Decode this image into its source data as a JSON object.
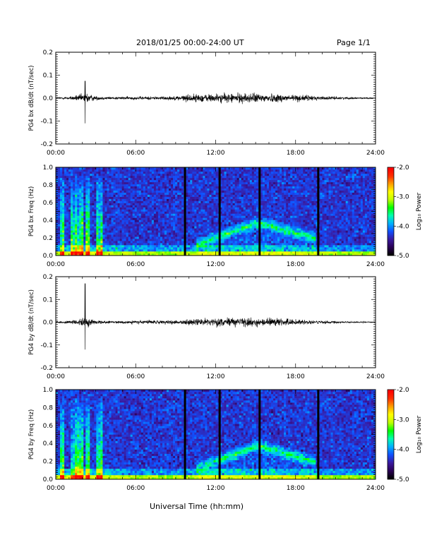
{
  "header": {
    "title": "2018/01/25  00:00-24:00 UT",
    "page": "Page 1/1"
  },
  "x_axis_title": "Universal Time (hh:mm)",
  "colorbar": {
    "label": "Log₁₀ Power",
    "ticks": [
      "-2.0",
      "-3.0",
      "-4.0",
      "-5.0"
    ],
    "range": [
      -5.0,
      -2.0
    ],
    "colors": [
      "#000000",
      "#2a0055",
      "#3a1aa0",
      "#1050ff",
      "#00b0ff",
      "#00ffb0",
      "#00ff00",
      "#c0ff00",
      "#ffff00",
      "#ffa000",
      "#ff3000",
      "#ff0000"
    ]
  },
  "chart_data": [
    {
      "type": "line",
      "ylabel": "PG4 bx dB/dt (nT/sec)",
      "xlim": [
        0,
        24
      ],
      "ylim": [
        -0.2,
        0.2
      ],
      "x_ticks": [
        "00:00",
        "06:00",
        "12:00",
        "18:00",
        "24:00"
      ],
      "y_ticks": [
        "0.2",
        "0.1",
        "0.0",
        "-0.1",
        "-0.2"
      ],
      "envelope": {
        "hours": [
          0,
          1,
          1.5,
          2,
          2.3,
          2.5,
          3,
          4,
          5,
          6,
          7,
          8,
          9,
          10,
          11,
          12,
          13,
          14,
          15,
          16,
          17,
          18,
          19,
          20,
          21,
          22,
          23,
          24
        ],
        "amplitude": [
          0.008,
          0.01,
          0.02,
          0.03,
          0.045,
          0.03,
          0.015,
          0.01,
          0.01,
          0.012,
          0.012,
          0.013,
          0.015,
          0.028,
          0.03,
          0.032,
          0.034,
          0.036,
          0.035,
          0.032,
          0.03,
          0.026,
          0.02,
          0.014,
          0.01,
          0.008,
          0.005,
          0.004
        ]
      },
      "spikes": [
        {
          "hour": 2.2,
          "max": 0.075,
          "min": -0.11
        }
      ]
    },
    {
      "type": "heatmap",
      "ylabel": "PG4 bx Freq (Hz)",
      "xlim": [
        0,
        24
      ],
      "ylim": [
        0.0,
        1.0
      ],
      "x_ticks": [
        "00:00",
        "06:00",
        "12:00",
        "18:00",
        "24:00"
      ],
      "y_ticks": [
        "1.0",
        "0.8",
        "0.6",
        "0.4",
        "0.2",
        "0.0"
      ],
      "data_gaps_hours": [
        9.7,
        12.3,
        15.3,
        19.7
      ],
      "features": {
        "low_freq_band_hz": 0.05,
        "broadband_bursts": [
          [
            0.3,
            0.6
          ],
          [
            1.2,
            2.0
          ],
          [
            2.2,
            2.6
          ],
          [
            3.0,
            3.5
          ]
        ],
        "rising_tone": {
          "start_hour": 10.5,
          "end_hour": 19.5,
          "peak_hour": 15.2,
          "peak_freq_hz": 0.38,
          "end_freq_hz": 0.2
        }
      }
    },
    {
      "type": "line",
      "ylabel": "PG4 by dB/dt (nT/sec)",
      "xlim": [
        0,
        24
      ],
      "ylim": [
        -0.2,
        0.2
      ],
      "x_ticks": [
        "00:00",
        "06:00",
        "12:00",
        "18:00",
        "24:00"
      ],
      "y_ticks": [
        "0.2",
        "0.1",
        "0.0",
        "-0.1",
        "-0.2"
      ],
      "envelope": {
        "hours": [
          0,
          1,
          1.5,
          2,
          2.3,
          2.5,
          3,
          4,
          5,
          6,
          7,
          8,
          9,
          10,
          11,
          12,
          13,
          14,
          15,
          16,
          17,
          18,
          19,
          20,
          21,
          22,
          23,
          24
        ],
        "amplitude": [
          0.007,
          0.01,
          0.02,
          0.03,
          0.04,
          0.025,
          0.012,
          0.01,
          0.01,
          0.012,
          0.013,
          0.014,
          0.016,
          0.02,
          0.024,
          0.028,
          0.032,
          0.034,
          0.033,
          0.03,
          0.027,
          0.022,
          0.016,
          0.011,
          0.008,
          0.006,
          0.005,
          0.004
        ]
      },
      "spikes": [
        {
          "hour": 2.2,
          "max": 0.17,
          "min": -0.12
        }
      ]
    },
    {
      "type": "heatmap",
      "ylabel": "PG4 by Freq (Hz)",
      "xlim": [
        0,
        24
      ],
      "ylim": [
        0.0,
        1.0
      ],
      "x_ticks": [
        "00:00",
        "06:00",
        "12:00",
        "18:00",
        "24:00"
      ],
      "y_ticks": [
        "1.0",
        "0.8",
        "0.6",
        "0.4",
        "0.2",
        "0.0"
      ],
      "data_gaps_hours": [
        9.7,
        12.3,
        15.3,
        19.7
      ],
      "features": {
        "low_freq_band_hz": 0.05,
        "broadband_bursts": [
          [
            0.3,
            0.6
          ],
          [
            1.2,
            2.0
          ],
          [
            2.2,
            2.6
          ],
          [
            3.0,
            3.5
          ]
        ],
        "rising_tone": {
          "start_hour": 10.5,
          "end_hour": 19.5,
          "peak_hour": 15.2,
          "peak_freq_hz": 0.38,
          "end_freq_hz": 0.2
        }
      }
    }
  ]
}
